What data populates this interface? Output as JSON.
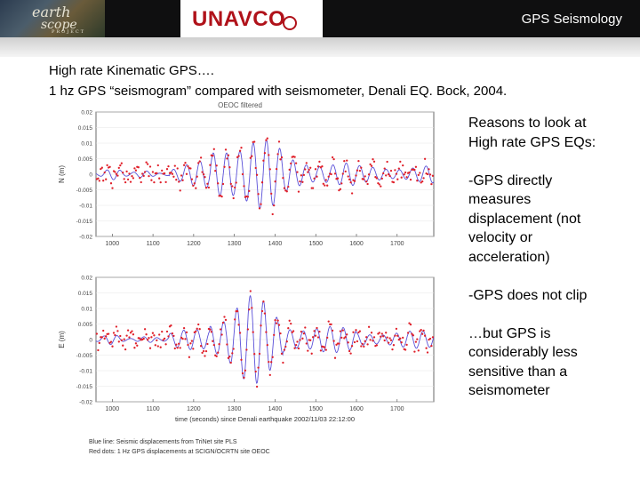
{
  "header": {
    "logo_text": [
      "earth",
      "scope",
      "PROJECT"
    ],
    "brand": "UNAVCO",
    "title": "GPS Seismology"
  },
  "intro": {
    "line1": "High rate Kinematic GPS….",
    "line2": "1 hz GPS “seismogram” compared with seismometer, Denali EQ. Bock, 2004."
  },
  "figure": {
    "title": "OEOC filtered",
    "top_axis_label": "N (m)",
    "bottom_axis_label": "E (m)",
    "top_ytick_labels": [
      "0.02",
      "0.015",
      "0.01",
      "0.005",
      "0",
      "-0.005",
      "-0.01",
      "-0.015",
      "-0.02"
    ],
    "bottom_ytick_labels": [
      "0.02",
      "0.015",
      "0.01",
      "0.005",
      "0",
      "-0.005",
      "-0.01",
      "-0.015",
      "-0.02"
    ],
    "xtick_labels": [
      "1000",
      "1100",
      "1200",
      "1300",
      "1400",
      "1500",
      "1600",
      "1700"
    ],
    "xlabel": "time (seconds) since Denali earthquake 2002/11/03 22:12:00",
    "caption_line1": "Blue line: Seismic displacements from TriNet site PLS",
    "caption_line2": "Red dots: 1 Hz GPS displacements at SCIGN/OCRTN site OEOC",
    "colors": {
      "seismic_line": "#5a50d8",
      "gps_dots": "#e0202a"
    }
  },
  "reasons": {
    "heading": [
      "Reasons to look at",
      "High rate GPS EQs:"
    ],
    "point1": [
      "-GPS directly",
      "measures",
      "displacement (not",
      "velocity or",
      "acceleration)"
    ],
    "point2": [
      "-GPS does not clip"
    ],
    "point3": [
      "…but GPS is",
      "considerably less",
      "sensitive than a",
      "seismometer"
    ]
  }
}
